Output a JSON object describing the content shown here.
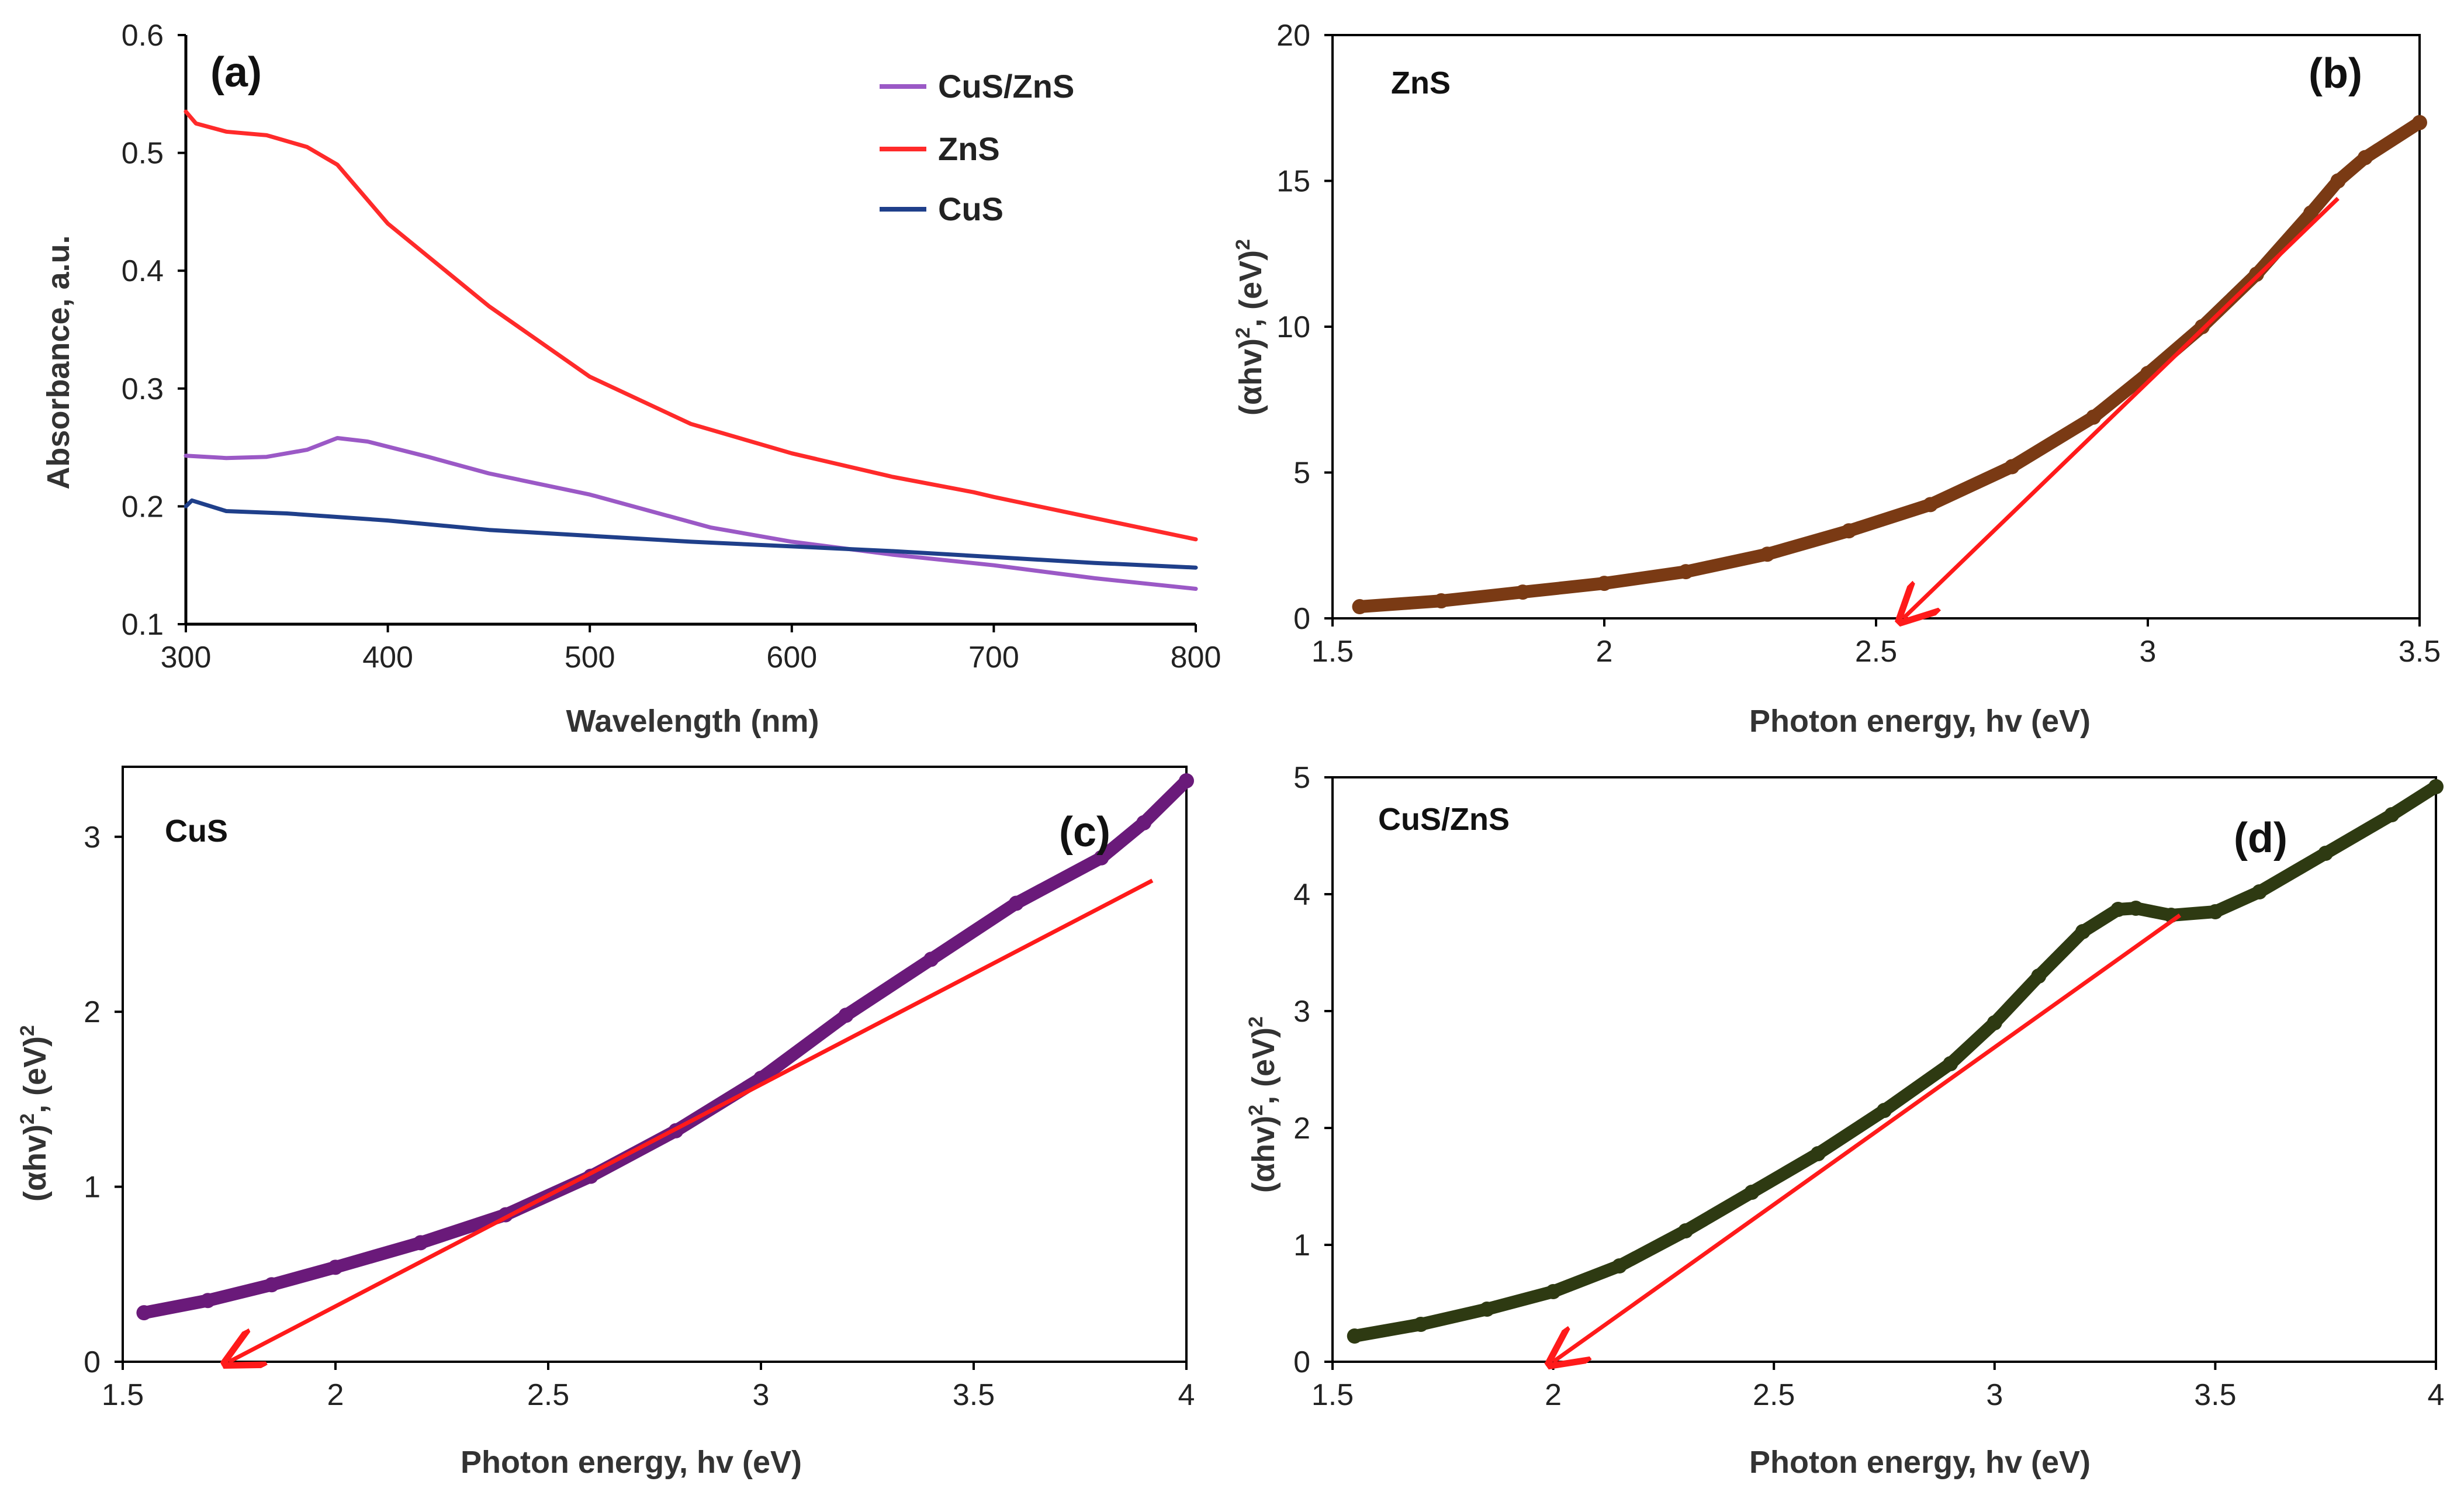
{
  "chart_data": [
    {
      "id": "a",
      "type": "line",
      "panel_label": "(a)",
      "xlabel": "Wavelength (nm)",
      "ylabel": "Absorbance, a.u.",
      "xlim": [
        300,
        800
      ],
      "ylim": [
        0.1,
        0.6
      ],
      "xticks": [
        300,
        400,
        500,
        600,
        700,
        800
      ],
      "yticks": [
        0.1,
        0.2,
        0.3,
        0.4,
        0.5,
        0.6
      ],
      "legend_position": "top-right",
      "series": [
        {
          "name": "CuS/ZnS",
          "color": "#9b59c6",
          "x": [
            300,
            320,
            340,
            360,
            375,
            390,
            420,
            450,
            500,
            530,
            560,
            600,
            650,
            700,
            750,
            800
          ],
          "y": [
            0.243,
            0.241,
            0.242,
            0.248,
            0.258,
            0.255,
            0.242,
            0.228,
            0.21,
            0.196,
            0.182,
            0.17,
            0.159,
            0.15,
            0.139,
            0.13
          ]
        },
        {
          "name": "ZnS",
          "color": "#ff2a2a",
          "x": [
            300,
            305,
            320,
            340,
            360,
            375,
            400,
            450,
            500,
            550,
            600,
            650,
            690,
            700,
            750,
            800
          ],
          "y": [
            0.535,
            0.525,
            0.518,
            0.515,
            0.505,
            0.49,
            0.44,
            0.37,
            0.31,
            0.27,
            0.245,
            0.225,
            0.212,
            0.208,
            0.19,
            0.172
          ]
        },
        {
          "name": "CuS",
          "color": "#1f3f8a",
          "x": [
            300,
            303,
            320,
            350,
            400,
            450,
            500,
            550,
            600,
            650,
            700,
            750,
            800
          ],
          "y": [
            0.2,
            0.205,
            0.196,
            0.194,
            0.188,
            0.18,
            0.175,
            0.17,
            0.166,
            0.162,
            0.157,
            0.152,
            0.148
          ]
        }
      ]
    },
    {
      "id": "b",
      "type": "scatter",
      "panel_label": "(b)",
      "sample_label": "ZnS",
      "xlabel": "Photon energy, hv (eV)",
      "ylabel_main": "(αhv)",
      "ylabel_tail": ", (eV)",
      "ylabel_sup": "2",
      "xlim": [
        1.5,
        3.5
      ],
      "ylim": [
        0,
        20
      ],
      "xticks": [
        1.5,
        2,
        2.5,
        3,
        3.5
      ],
      "yticks": [
        0,
        5,
        10,
        15,
        20
      ],
      "series": [
        {
          "name": "ZnS (αhv)²",
          "color": "#7a3a14",
          "x": [
            1.55,
            1.7,
            1.85,
            2.0,
            2.15,
            2.3,
            2.45,
            2.6,
            2.75,
            2.9,
            3.0,
            3.1,
            3.2,
            3.3,
            3.35,
            3.4,
            3.5
          ],
          "y": [
            0.4,
            0.6,
            0.9,
            1.2,
            1.6,
            2.2,
            3.0,
            3.9,
            5.2,
            6.9,
            8.4,
            10.0,
            11.8,
            13.9,
            15.0,
            15.8,
            17.0
          ]
        }
      ],
      "fit_line": {
        "color": "#ff1a1a",
        "x": [
          3.35,
          2.55
        ],
        "y": [
          14.4,
          0
        ]
      }
    },
    {
      "id": "c",
      "type": "scatter",
      "panel_label": "(c)",
      "sample_label": "CuS",
      "xlabel": "Photon energy, hv (eV)",
      "ylabel_main": "(αhv)",
      "ylabel_tail": ", (eV)",
      "ylabel_sup": "2",
      "xlim": [
        1.5,
        4
      ],
      "ylim": [
        0,
        3.4
      ],
      "xticks": [
        1.5,
        2,
        2.5,
        3,
        3.5,
        4
      ],
      "yticks": [
        0,
        1,
        2,
        3
      ],
      "series": [
        {
          "name": "CuS (αhv)²",
          "color": "#6a1a7a",
          "x": [
            1.55,
            1.7,
            1.85,
            2.0,
            2.2,
            2.4,
            2.6,
            2.8,
            3.0,
            3.2,
            3.4,
            3.6,
            3.8,
            3.9,
            4.0
          ],
          "y": [
            0.28,
            0.35,
            0.44,
            0.54,
            0.68,
            0.84,
            1.06,
            1.32,
            1.62,
            1.98,
            2.3,
            2.62,
            2.88,
            3.08,
            3.32
          ]
        }
      ],
      "fit_line": {
        "color": "#ff1a1a",
        "x": [
          3.92,
          1.75
        ],
        "y": [
          2.75,
          0
        ]
      }
    },
    {
      "id": "d",
      "type": "scatter",
      "panel_label": "(d)",
      "sample_label": "CuS/ZnS",
      "xlabel": "Photon energy, hv (eV)",
      "ylabel_main": "(αhv)",
      "ylabel_tail": ", (eV)",
      "ylabel_sup": "2",
      "xlim": [
        1.5,
        4
      ],
      "ylim": [
        0,
        5
      ],
      "xticks": [
        1.5,
        2,
        2.5,
        3,
        3.5,
        4
      ],
      "yticks": [
        0,
        1,
        2,
        3,
        4,
        5
      ],
      "series": [
        {
          "name": "CuS/ZnS (αhv)²",
          "color": "#2e3a12",
          "x": [
            1.55,
            1.7,
            1.85,
            2.0,
            2.15,
            2.3,
            2.45,
            2.6,
            2.75,
            2.9,
            3.0,
            3.1,
            3.2,
            3.28,
            3.32,
            3.4,
            3.5,
            3.6,
            3.75,
            3.9,
            4.0
          ],
          "y": [
            0.22,
            0.32,
            0.45,
            0.6,
            0.82,
            1.12,
            1.45,
            1.78,
            2.15,
            2.55,
            2.9,
            3.3,
            3.68,
            3.87,
            3.88,
            3.82,
            3.85,
            4.02,
            4.35,
            4.68,
            4.92
          ]
        }
      ],
      "fit_line": {
        "color": "#ff1a1a",
        "x": [
          3.42,
          2.0
        ],
        "y": [
          3.82,
          0
        ]
      }
    }
  ]
}
